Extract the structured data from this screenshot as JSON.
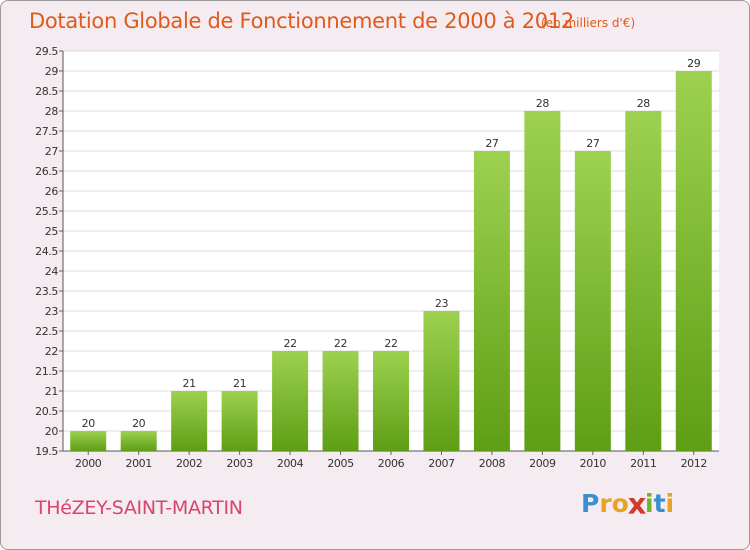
{
  "chart_data": {
    "type": "bar",
    "title": "Dotation Globale de Fonctionnement de 2000 à 2012",
    "subtitle": "(en milliers d'€)",
    "categories": [
      "2000",
      "2001",
      "2002",
      "2003",
      "2004",
      "2005",
      "2006",
      "2007",
      "2008",
      "2009",
      "2010",
      "2011",
      "2012"
    ],
    "values": [
      20,
      20,
      21,
      21,
      22,
      22,
      22,
      23,
      27,
      28,
      27,
      28,
      29
    ],
    "ylim": [
      19.5,
      29.5
    ],
    "yticks": [
      "19.5",
      "20",
      "20.5",
      "21",
      "21.5",
      "22",
      "22.5",
      "23",
      "23.5",
      "24",
      "24.5",
      "25",
      "25.5",
      "26",
      "26.5",
      "27",
      "27.5",
      "28",
      "28.5",
      "29",
      "29.5"
    ],
    "xlabel": "",
    "ylabel": "",
    "grid": true
  },
  "footer": {
    "commune": "THéZEY-SAINT-MARTIN",
    "logo_letters": [
      "P",
      "r",
      "o",
      "x",
      "i",
      "t",
      "i"
    ]
  },
  "colors": {
    "title": "#e05a1c",
    "commune": "#d9456b",
    "bar_light": "#9dd150",
    "bar_dark": "#5e9e14",
    "logo": [
      "#3a8fd0",
      "#e8a224",
      "#e8a224",
      "#d43a2c",
      "#6bb42c",
      "#3a8fd0",
      "#e8a224"
    ]
  }
}
